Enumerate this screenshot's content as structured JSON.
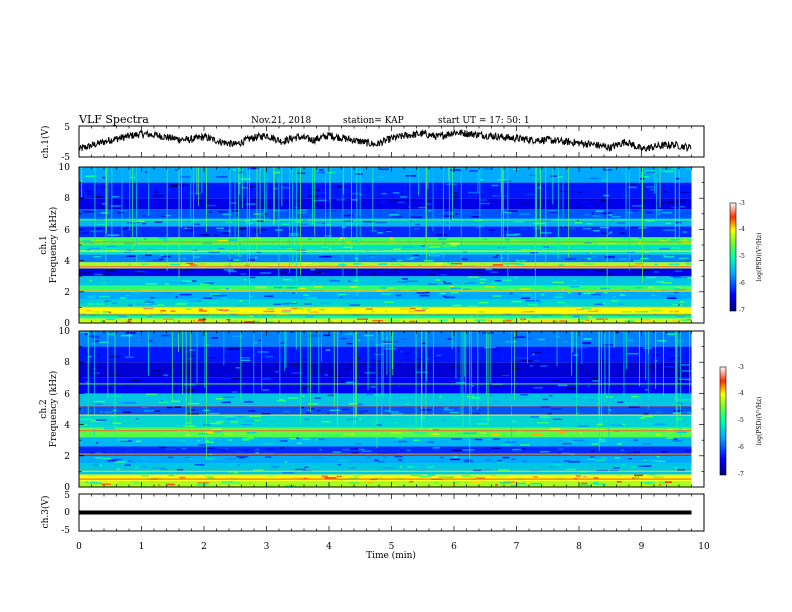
{
  "header": {
    "title": "VLF Spectra",
    "date": "Nov.21, 2018",
    "station": "station= KAP",
    "start_time": "start  UT =   17: 50: 1"
  },
  "chart_data": [
    {
      "type": "line",
      "name": "ch1_waveform",
      "ylabel": "ch.1(V)",
      "ylim": [
        -5,
        5
      ],
      "yticks": [
        "5",
        "-5"
      ],
      "xlim": [
        0,
        10
      ],
      "trace_points_min": [
        0.0,
        0.25,
        0.5,
        0.75,
        1.0,
        1.25,
        1.5,
        1.75,
        2.0,
        2.25,
        2.5,
        2.75,
        3.0,
        3.25,
        3.5,
        3.75,
        4.0,
        4.25,
        4.5,
        4.75,
        5.0,
        5.25,
        5.5,
        5.75,
        6.0,
        6.25,
        6.5,
        6.75,
        7.0,
        7.25,
        7.5,
        7.75,
        8.0,
        8.25,
        8.5,
        8.75,
        9.0,
        9.25,
        9.5,
        9.8
      ],
      "trace_points_v": [
        -2.5,
        -1.0,
        0.5,
        1.5,
        2.5,
        2.0,
        1.0,
        0.5,
        1.5,
        0.0,
        -1.0,
        1.0,
        2.0,
        0.0,
        1.5,
        0.5,
        2.0,
        1.0,
        0.0,
        -1.0,
        1.0,
        2.0,
        2.5,
        1.5,
        3.0,
        2.5,
        2.0,
        1.5,
        1.0,
        0.5,
        0.5,
        0.0,
        -0.5,
        -1.0,
        -2.0,
        0.0,
        -2.5,
        -1.5,
        -1.0,
        -2.0
      ]
    },
    {
      "type": "heatmap",
      "name": "ch1_spectrogram",
      "ylabel": "ch.1",
      "ylabel2": "Frequency (kHz)",
      "ylim": [
        0,
        10
      ],
      "yticks": [
        "0",
        "2",
        "4",
        "6",
        "8",
        "10"
      ],
      "xlim": [
        0,
        10
      ],
      "data_end_min": 9.8,
      "colorbar": {
        "label": "log(PSD)(V²/Hz)",
        "range": [
          -7,
          -3
        ],
        "ticks": [
          "-3",
          "-4",
          "-5",
          "-6",
          "-7"
        ]
      },
      "bands": [
        {
          "f": [
            0.0,
            0.3
          ],
          "level": -4.2
        },
        {
          "f": [
            0.3,
            0.6
          ],
          "level": -5.0
        },
        {
          "f": [
            0.6,
            1.0
          ],
          "level": -4.0
        },
        {
          "f": [
            1.0,
            1.5
          ],
          "level": -5.3
        },
        {
          "f": [
            1.5,
            2.0
          ],
          "level": -5.6
        },
        {
          "f": [
            2.0,
            2.4
          ],
          "level": -4.8
        },
        {
          "f": [
            2.4,
            3.0
          ],
          "level": -5.4
        },
        {
          "f": [
            3.0,
            3.5
          ],
          "level": -6.5
        },
        {
          "f": [
            3.5,
            3.9
          ],
          "level": -4.3
        },
        {
          "f": [
            3.9,
            4.4
          ],
          "level": -5.8
        },
        {
          "f": [
            4.4,
            5.0
          ],
          "level": -5.2
        },
        {
          "f": [
            5.0,
            5.5
          ],
          "level": -4.7
        },
        {
          "f": [
            5.5,
            6.2
          ],
          "level": -6.2
        },
        {
          "f": [
            6.2,
            6.7
          ],
          "level": -5.5
        },
        {
          "f": [
            6.7,
            7.3
          ],
          "level": -6.0
        },
        {
          "f": [
            7.3,
            8.0
          ],
          "level": -6.5
        },
        {
          "f": [
            8.0,
            9.0
          ],
          "level": -6.3
        },
        {
          "f": [
            9.0,
            10.0
          ],
          "level": -5.6
        }
      ]
    },
    {
      "type": "heatmap",
      "name": "ch2_spectrogram",
      "ylabel": "ch.2",
      "ylabel2": "Frequency (kHz)",
      "ylim": [
        0,
        10
      ],
      "yticks": [
        "0",
        "2",
        "4",
        "6",
        "8",
        "10"
      ],
      "xlim": [
        0,
        10
      ],
      "data_end_min": 9.8,
      "colorbar": {
        "label": "log(PSD)(V²/Hz)",
        "range": [
          -7,
          -3
        ],
        "ticks": [
          "-3",
          "-4",
          "-5",
          "-6",
          "-7"
        ]
      },
      "bands": [
        {
          "f": [
            0.0,
            0.4
          ],
          "level": -4.3
        },
        {
          "f": [
            0.4,
            0.8
          ],
          "level": -4.0
        },
        {
          "f": [
            0.8,
            1.5
          ],
          "level": -5.4
        },
        {
          "f": [
            1.5,
            2.0
          ],
          "level": -5.6
        },
        {
          "f": [
            2.0,
            2.6
          ],
          "level": -6.2
        },
        {
          "f": [
            2.6,
            3.2
          ],
          "level": -5.5
        },
        {
          "f": [
            3.2,
            3.8
          ],
          "level": -4.6
        },
        {
          "f": [
            3.8,
            4.6
          ],
          "level": -5.3
        },
        {
          "f": [
            4.6,
            5.2
          ],
          "level": -6.0
        },
        {
          "f": [
            5.2,
            6.0
          ],
          "level": -5.4
        },
        {
          "f": [
            6.0,
            7.0
          ],
          "level": -6.4
        },
        {
          "f": [
            7.0,
            8.0
          ],
          "level": -6.6
        },
        {
          "f": [
            8.0,
            9.0
          ],
          "level": -6.3
        },
        {
          "f": [
            9.0,
            10.0
          ],
          "level": -5.8
        }
      ]
    },
    {
      "type": "line",
      "name": "ch3_waveform",
      "ylabel": "ch.3(V)",
      "ylim": [
        -5,
        5
      ],
      "yticks": [
        "5",
        "0",
        "-5"
      ],
      "xlim": [
        0,
        10
      ],
      "constant_value_v": 0,
      "data_end_min": 9.8,
      "xlabel": "Time (min)",
      "xticks": [
        "0",
        "1",
        "2",
        "3",
        "4",
        "5",
        "6",
        "7",
        "8",
        "9",
        "10"
      ]
    }
  ]
}
